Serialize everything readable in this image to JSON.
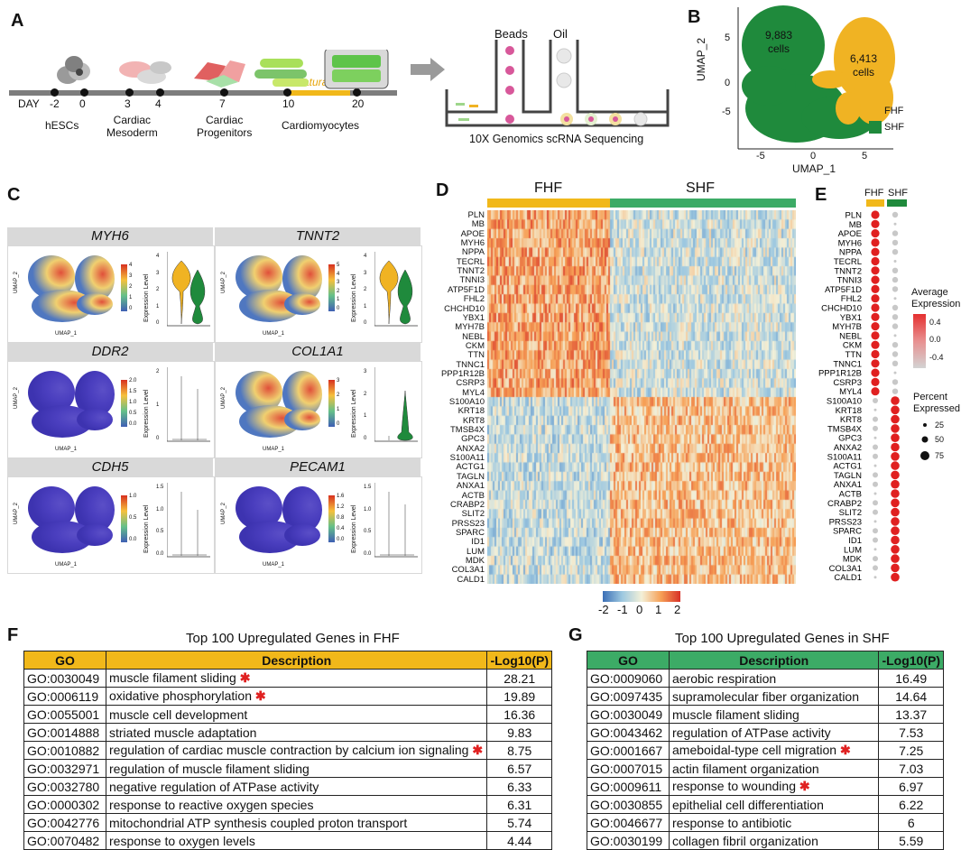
{
  "labels": {
    "a": "A",
    "b": "B",
    "c": "C",
    "d": "D",
    "e": "E",
    "f": "F",
    "g": "G"
  },
  "panel_a": {
    "day_label": "DAY",
    "days": [
      "-2",
      "0",
      "3",
      "4",
      "7",
      "10",
      "20"
    ],
    "stages": [
      "hESCs",
      "Cardiac\nMesoderm",
      "Cardiac\nProgenitors",
      "Cardiomyocytes"
    ],
    "maturation": "Maturation",
    "beads": "Beads",
    "oil": "Oil",
    "sequencing": "10X Genomics scRNA Sequencing"
  },
  "panel_b": {
    "xlabel": "UMAP_1",
    "ylabel": "UMAP_2",
    "xticks": [
      "-5",
      "0",
      "5"
    ],
    "yticks": [
      "5",
      "0",
      "-5"
    ],
    "shf_count": "9,883",
    "shf_unit": "cells",
    "fhf_count": "6,413",
    "fhf_unit": "cells",
    "legend": [
      {
        "name": "FHF",
        "color": "#f0b323"
      },
      {
        "name": "SHF",
        "color": "#1f8a3c"
      }
    ]
  },
  "panel_c": {
    "genes": [
      "MYH6",
      "TNNT2",
      "DDR2",
      "COL1A1",
      "CDH5",
      "PECAM1"
    ],
    "umap_x": "UMAP_1",
    "umap_y": "UMAP_2",
    "violin_y": "Expression Level",
    "scales": [
      [
        "4",
        "3",
        "2",
        "1",
        "0"
      ],
      [
        "5",
        "4",
        "3",
        "2",
        "1",
        "0"
      ],
      [
        "2.0",
        "1.5",
        "1.0",
        "0.5",
        "0.0"
      ],
      [
        "3",
        "2",
        "1",
        "0"
      ],
      [
        "1.0",
        "0.5",
        "0.0"
      ],
      [
        "1.6",
        "1.2",
        "0.8",
        "0.4",
        "0.0"
      ]
    ],
    "violin_ticks": [
      [
        "4",
        "3",
        "2",
        "1",
        "0"
      ],
      [
        "4",
        "3",
        "2",
        "1",
        "0"
      ],
      [
        "2",
        "1",
        "0"
      ],
      [
        "3",
        "2",
        "1",
        "0"
      ],
      [
        "1.5",
        "1.0",
        "0.5",
        "0.0"
      ],
      [
        "1.5",
        "1.0",
        "0.5",
        "0.0"
      ]
    ]
  },
  "panel_d": {
    "groups": [
      "FHF",
      "SHF"
    ],
    "genes": [
      "PLN",
      "MB",
      "APOE",
      "MYH6",
      "NPPA",
      "TECRL",
      "TNNT2",
      "TNNI3",
      "ATP5F1D",
      "FHL2",
      "CHCHD10",
      "YBX1",
      "MYH7B",
      "NEBL",
      "CKM",
      "TTN",
      "TNNC1",
      "PPP1R12B",
      "CSRP3",
      "MYL4",
      "S100A10",
      "KRT18",
      "KRT8",
      "TMSB4X",
      "GPC3",
      "ANXA2",
      "S100A11",
      "ACTG1",
      "TAGLN",
      "ANXA1",
      "ACTB",
      "CRABP2",
      "SLIT2",
      "PRSS23",
      "SPARC",
      "ID1",
      "LUM",
      "MDK",
      "COL3A1",
      "CALD1"
    ],
    "colorbar_ticks": [
      "-2",
      "-1",
      "0",
      "1",
      "2"
    ]
  },
  "panel_e": {
    "groups": [
      "FHF",
      "SHF"
    ],
    "avg_title": "Average\nExpression",
    "avg_ticks": [
      "0.4",
      "0.0",
      "-0.4"
    ],
    "pct_title": "Percent\nExpressed",
    "pct_ticks": [
      "25",
      "50",
      "75"
    ]
  },
  "panel_f": {
    "title": "Top 100 Upregulated Genes in FHF",
    "headers": [
      "GO",
      "Description",
      "-Log10(P)"
    ],
    "rows": [
      {
        "go": "GO:0030049",
        "desc": "muscle filament sliding",
        "p": "28.21",
        "star": true
      },
      {
        "go": "GO:0006119",
        "desc": "oxidative phosphorylation",
        "p": "19.89",
        "star": true
      },
      {
        "go": "GO:0055001",
        "desc": "muscle cell development",
        "p": "16.36",
        "star": false
      },
      {
        "go": "GO:0014888",
        "desc": "striated muscle adaptation",
        "p": "9.83",
        "star": false
      },
      {
        "go": "GO:0010882",
        "desc": "regulation of cardiac muscle contraction by calcium ion signaling",
        "p": "8.75",
        "star": true
      },
      {
        "go": "GO:0032971",
        "desc": "regulation of muscle filament sliding",
        "p": "6.57",
        "star": false
      },
      {
        "go": "GO:0032780",
        "desc": "negative regulation of ATPase activity",
        "p": "6.33",
        "star": false
      },
      {
        "go": "GO:0000302",
        "desc": "response to reactive oxygen species",
        "p": "6.31",
        "star": false
      },
      {
        "go": "GO:0042776",
        "desc": "mitochondrial ATP synthesis coupled proton transport",
        "p": "5.74",
        "star": false
      },
      {
        "go": "GO:0070482",
        "desc": "response to oxygen levels",
        "p": "4.44",
        "star": false
      }
    ]
  },
  "panel_g": {
    "title": "Top 100 Upregulated Genes in SHF",
    "headers": [
      "GO",
      "Description",
      "-Log10(P)"
    ],
    "rows": [
      {
        "go": "GO:0009060",
        "desc": "aerobic respiration",
        "p": "16.49",
        "star": false
      },
      {
        "go": "GO:0097435",
        "desc": "supramolecular fiber organization",
        "p": "14.64",
        "star": false
      },
      {
        "go": "GO:0030049",
        "desc": "muscle filament sliding",
        "p": "13.37",
        "star": false
      },
      {
        "go": "GO:0043462",
        "desc": "regulation of ATPase activity",
        "p": "7.53",
        "star": false
      },
      {
        "go": "GO:0001667",
        "desc": "ameboidal-type cell migration",
        "p": "7.25",
        "star": true
      },
      {
        "go": "GO:0007015",
        "desc": "actin filament organization",
        "p": "7.03",
        "star": false
      },
      {
        "go": "GO:0009611",
        "desc": "response to wounding",
        "p": "6.97",
        "star": true
      },
      {
        "go": "GO:0030855",
        "desc": "epithelial cell differentiation",
        "p": "6.22",
        "star": false
      },
      {
        "go": "GO:0046677",
        "desc": "response to antibiotic",
        "p": "6",
        "star": false
      },
      {
        "go": "GO:0030199",
        "desc": "collagen fibril organization",
        "p": "5.59",
        "star": false
      }
    ]
  },
  "colors": {
    "fhf": "#f0b323",
    "shf": "#1f8a3c",
    "fhf_header": "#f1b81a",
    "shf_header": "#3cab66"
  }
}
